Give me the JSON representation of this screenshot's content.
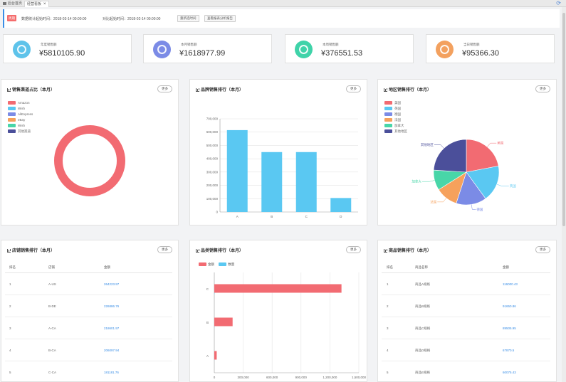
{
  "tabs": [
    {
      "label": "后台首页",
      "active": false
    },
    {
      "label": "经营看板",
      "active": true
    }
  ],
  "filter": {
    "tag": "周期",
    "stat_time": "数据统计起始时间：2018-03-14 00:00:00",
    "compare_time": "对比起始时间：2018-02-14 00:00:00",
    "btn_select": "重新选时间",
    "btn_report": "查看报表分析报告"
  },
  "kpis": [
    {
      "label": "年度销售额",
      "value": "¥5810105.90",
      "color": "#5ec3ea",
      "icon": "coins-icon"
    },
    {
      "label": "本月销售额",
      "value": "¥1618977.99",
      "color": "#7b8be6",
      "icon": "wallet-icon"
    },
    {
      "label": "本周销售额",
      "value": "¥376551.53",
      "color": "#3fd3a9",
      "icon": "cart-icon"
    },
    {
      "label": "当日销售额",
      "value": "¥95366.30",
      "color": "#f3a15f",
      "icon": "receipt-icon"
    }
  ],
  "more_label": "更多",
  "more_label_bottom": "更多",
  "charts": {
    "platform": {
      "title": "销售渠道占比（本月）",
      "legend": [
        "Amazon",
        "Wish",
        "AliExpress",
        "eBay",
        "Wish",
        "其他渠道"
      ],
      "legend_colors": [
        "#f26b72",
        "#5ac8f2",
        "#7b8be6",
        "#f6a15c",
        "#48d6a8",
        "#4b4f9a"
      ]
    },
    "brand": {
      "title": "品牌销售排行（本月）"
    },
    "region": {
      "title": "地区销售排行（本月）",
      "legend": [
        "美国",
        "英国",
        "德国",
        "法国",
        "加拿大",
        "其他地区"
      ],
      "slice_labels": [
        "美国",
        "英国",
        "德国",
        "法国",
        "加拿大",
        "其他地区"
      ]
    },
    "store": {
      "title": "店铺销售排行（本月）",
      "headers": [
        "排名",
        "店铺",
        "金额"
      ],
      "rows": [
        [
          "1",
          "A-US",
          "264223.97"
        ],
        [
          "2",
          "B-DE",
          "226886.76"
        ],
        [
          "3",
          "A-CA",
          "218601.97"
        ],
        [
          "4",
          "B-CA",
          "206097.94"
        ],
        [
          "5",
          "C-CA",
          "181181.76"
        ]
      ]
    },
    "category": {
      "title": "品类销售排行（本月）",
      "legend": [
        "金额",
        "数量"
      ]
    },
    "product": {
      "title": "商品销售排行（本月）",
      "headers": [
        "排名",
        "商品名称",
        "金额"
      ],
      "rows": [
        [
          "1",
          "商品A规格",
          "116000.43"
        ],
        [
          "2",
          "商品B规格",
          "91650.86"
        ],
        [
          "3",
          "商品C规格",
          "89505.95"
        ],
        [
          "4",
          "商品D规格",
          "67870.5"
        ],
        [
          "5",
          "商品E规格",
          "60075.43"
        ]
      ]
    }
  },
  "chart_data": [
    {
      "type": "pie",
      "title": "销售渠道占比（本月）",
      "variant": "donut",
      "labels": [
        "Amazon",
        "Wish",
        "AliExpress",
        "eBay",
        "Wish",
        "其他渠道"
      ],
      "values": [
        100,
        0,
        0,
        0,
        0,
        0
      ],
      "colors": [
        "#f26b72",
        "#5ac8f2",
        "#7b8be6",
        "#f6a15c",
        "#48d6a8",
        "#4b4f9a"
      ]
    },
    {
      "type": "bar",
      "title": "品牌销售排行（本月）",
      "categories": [
        "A",
        "B",
        "C",
        "D"
      ],
      "values": [
        615000,
        450000,
        450000,
        105000
      ],
      "ylim": [
        0,
        700000
      ],
      "yticks": [
        "0",
        "100,000",
        "200,000",
        "300,000",
        "400,000",
        "500,000",
        "600,000",
        "700,000"
      ],
      "color": "#5ac8f2",
      "grid": true
    },
    {
      "type": "pie",
      "title": "地区销售排行（本月）",
      "labels": [
        "美国",
        "英国",
        "德国",
        "法国",
        "加拿大",
        "其他地区"
      ],
      "values": [
        22,
        18,
        15,
        11,
        10,
        24
      ],
      "colors": [
        "#f26b72",
        "#5ac8f2",
        "#7b8be6",
        "#f6a15c",
        "#48d6a8",
        "#4b4f9a"
      ]
    },
    {
      "type": "bar",
      "orientation": "horizontal",
      "title": "品类销售排行（本月）",
      "categories": [
        "C",
        "B",
        "A"
      ],
      "series": [
        {
          "name": "金额",
          "values": [
            1320000,
            190000,
            25000
          ],
          "color": "#f26b72"
        },
        {
          "name": "数量",
          "values": [
            3000,
            1800,
            600
          ],
          "color": "#5ac8f2"
        }
      ],
      "xlim": [
        0,
        1500000
      ],
      "xticks": [
        "0",
        "300,000",
        "600,000",
        "900,000",
        "1,200,000",
        "1,500,000"
      ],
      "grid": true
    }
  ]
}
